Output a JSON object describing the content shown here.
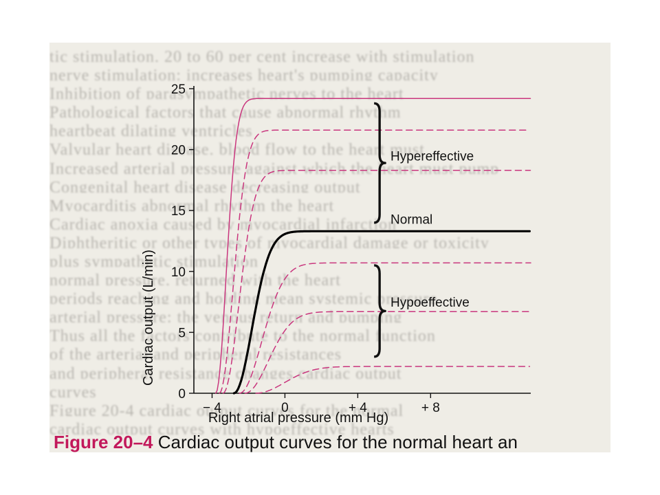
{
  "background_lines": [
    "tic stimulation, 20 to 60 per cent increase with stimulation",
    "nerve stimulation: increases heart's pumping capacity",
    "Inhibition of parasympathetic nerves to the heart",
    "Pathological factors that cause abnormal rhythm",
    "heartbeat dilating ventricles",
    "Valvular heart disease, blood flow to the heart must",
    "Increased arterial pressure against which the heart must pump",
    "Congenital heart disease decreasing output",
    "Myocarditis abnormal rhythm the heart",
    "Cardiac anoxia caused by myocardial infarction",
    "Diphtheritic or other types of myocardial damage or toxicity",
    "plus sympathetic stimulation",
    "normal pressure, returned with the heart",
    "periods reaching and holding mean systemic pressure",
    "arterial pressure: the venous return and pumping",
    "Thus all the factors contribute to the normal function",
    "of the arterial and peripheral resistances",
    "and peripheral resistance changes cardiac output",
    "curves",
    "Figure 20-4 cardiac output curves for the normal",
    "cardiac output curves with hypoeffective hearts"
  ],
  "chart_data": {
    "type": "line",
    "xlabel": "Right atrial pressure (mm Hg)",
    "ylabel": "Cardiac output (L/min)",
    "x_ticks": [
      {
        "value": -4,
        "label": "− 4"
      },
      {
        "value": 0,
        "label": "0"
      },
      {
        "value": 4,
        "label": "+ 4"
      },
      {
        "value": 8,
        "label": "+ 8"
      }
    ],
    "y_ticks": [
      {
        "value": 0,
        "label": "0"
      },
      {
        "value": 5,
        "label": "5"
      },
      {
        "value": 10,
        "label": "10"
      },
      {
        "value": 15,
        "label": "15"
      },
      {
        "value": 20,
        "label": "20"
      },
      {
        "value": 25,
        "label": "25"
      }
    ],
    "xlim": [
      -5,
      13.5
    ],
    "ylim": [
      0,
      25
    ],
    "grid": false,
    "series": [
      {
        "group": "hypereffective",
        "style": "solid",
        "color": "#c9357d",
        "x0": -3.8,
        "plateau": 24.2,
        "rate": 1.25,
        "sharp": 2.0
      },
      {
        "group": "hypereffective",
        "style": "dashed",
        "color": "#c9357d",
        "x0": -3.6,
        "plateau": 21.6,
        "rate": 0.95,
        "sharp": 2.0
      },
      {
        "group": "hypereffective",
        "style": "dashed",
        "color": "#c9357d",
        "x0": -3.4,
        "plateau": 18.3,
        "rate": 0.82,
        "sharp": 2.0
      },
      {
        "group": "normal",
        "style": "solid",
        "color": "#000000",
        "x0": -2.8,
        "plateau": 13.3,
        "rate": 0.72,
        "sharp": 2.0
      },
      {
        "group": "hypoeffective",
        "style": "dashed",
        "color": "#c9357d",
        "x0": -2.5,
        "plateau": 10.7,
        "rate": 0.58,
        "sharp": 2.0
      },
      {
        "group": "hypoeffective",
        "style": "dashed",
        "color": "#c9357d",
        "x0": -2.2,
        "plateau": 6.7,
        "rate": 0.55,
        "sharp": 2.0
      },
      {
        "group": "hypoeffective",
        "style": "dashed",
        "color": "#c9357d",
        "x0": -1.6,
        "plateau": 2.2,
        "rate": 0.45,
        "sharp": 2.0
      }
    ],
    "annotations": [
      {
        "text": "Hypereffective",
        "x": 5.8,
        "y": 19.5
      },
      {
        "text": "Normal",
        "x": 5.8,
        "y": 14.3
      },
      {
        "text": "Hypoeffective",
        "x": 5.8,
        "y": 7.5
      }
    ],
    "brackets": [
      {
        "x": 5.2,
        "y_top": 23.8,
        "y_bottom": 14.0
      },
      {
        "x": 5.2,
        "y_top": 10.5,
        "y_bottom": 3.0
      }
    ]
  },
  "caption": {
    "figure_label": "Figure 20–4",
    "text": " Cardiac output curves for the normal heart an"
  },
  "colors": {
    "page": "#ffffff",
    "paper": "#efede6",
    "curve_accent": "#c9357d",
    "caption_label": "#c2185b"
  }
}
